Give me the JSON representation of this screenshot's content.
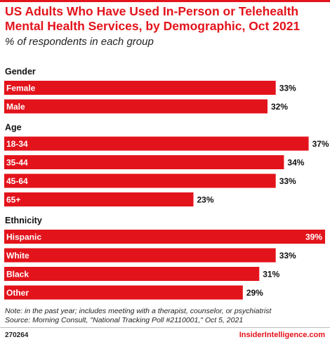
{
  "header": {
    "title": "US Adults Who Have Used In-Person or Telehealth Mental Health Services, by Demographic, Oct 2021",
    "subtitle": "% of respondents in each group"
  },
  "footer": {
    "note": "Note: in the past year; includes meeting with a therapist, counselor, or psychiatrist",
    "source": "Source: Morning Consult, \"National Tracking Poll #2110001,\" Oct 5, 2021",
    "code": "270264",
    "brand": "InsiderIntelligence.com"
  },
  "colors": {
    "bar": "#e3131b",
    "label_inside": "#ffffff",
    "value": "#111111",
    "brand": "#e3131b"
  },
  "chart_data": {
    "type": "bar",
    "orientation": "horizontal",
    "unit": "%",
    "xlim": [
      0,
      39
    ],
    "groups": [
      {
        "name": "Gender",
        "categories": [
          "Female",
          "Male"
        ],
        "values": [
          33,
          32
        ]
      },
      {
        "name": "Age",
        "categories": [
          "18-34",
          "35-44",
          "45-64",
          "65+"
        ],
        "values": [
          37,
          34,
          33,
          23
        ]
      },
      {
        "name": "Ethnicity",
        "categories": [
          "Hispanic",
          "White",
          "Black",
          "Other"
        ],
        "values": [
          39,
          33,
          31,
          29
        ]
      }
    ]
  }
}
